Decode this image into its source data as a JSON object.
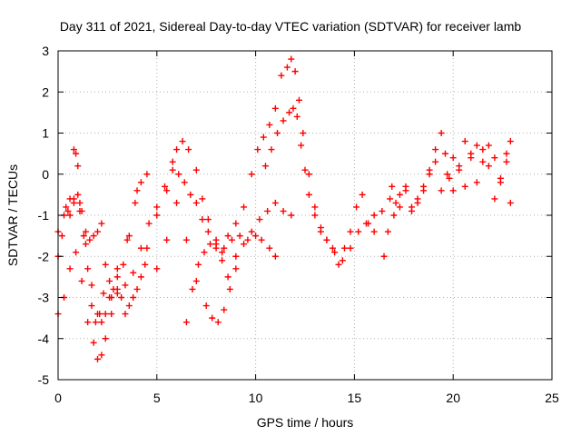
{
  "chart_data": {
    "type": "scatter",
    "title": "Day 311 of 2021, Sidereal Day-to-day VTEC variation (SDTVAR) for receiver lamb",
    "xlabel": "GPS time / hours",
    "ylabel": "SDTVAR / TECUs",
    "xlim": [
      0,
      25
    ],
    "ylim": [
      -5,
      3
    ],
    "xticks": [
      0,
      5,
      10,
      15,
      20,
      25
    ],
    "yticks": [
      -5,
      -4,
      -3,
      -2,
      -1,
      0,
      1,
      2,
      3
    ],
    "grid": true,
    "marker": "+",
    "color": "#ff0000",
    "series": [
      {
        "x": [
          0.0,
          0.3,
          0.6,
          0.8,
          0.9,
          1.0,
          1.1,
          1.3,
          1.5,
          1.7,
          1.9,
          2.1,
          2.3,
          2.6,
          3.0,
          3.5,
          4.0,
          4.5,
          5.0,
          5.5,
          5.8,
          6.0,
          6.3,
          6.6,
          7.0,
          7.3,
          7.6,
          8.0,
          8.3,
          8.6,
          9.0
        ],
        "y": [
          -1.4,
          -1.0,
          -0.6,
          0.6,
          0.5,
          0.2,
          -0.7,
          -1.5,
          -2.3,
          -3.2,
          -3.6,
          -3.4,
          -2.9,
          -2.6,
          -2.3,
          -1.6,
          -0.4,
          0.0,
          -1.0,
          -0.4,
          0.3,
          0.6,
          0.8,
          0.6,
          0.1,
          -0.6,
          -1.1,
          -1.6,
          -1.9,
          -1.5,
          -1.2
        ]
      },
      {
        "x": [
          0.0,
          0.2,
          0.5,
          0.8,
          1.1,
          1.4,
          1.7,
          2.0,
          2.2,
          2.4,
          2.7,
          3.0,
          3.4,
          3.8,
          4.2,
          4.6,
          5.0,
          5.4,
          5.8,
          6.1,
          6.4,
          6.7,
          7.0,
          7.3,
          7.6,
          8.0,
          8.4,
          8.8,
          9.2,
          9.6,
          10.0,
          10.3,
          10.7,
          11.0
        ],
        "y": [
          -2.0,
          -1.5,
          -0.9,
          -0.6,
          -0.9,
          -1.7,
          -2.7,
          -3.4,
          -3.6,
          -3.4,
          -3.0,
          -2.9,
          -2.7,
          -2.4,
          -1.8,
          -1.2,
          -0.8,
          -0.3,
          0.1,
          0.0,
          -0.2,
          -0.5,
          -0.7,
          -1.1,
          -1.4,
          -1.7,
          -1.8,
          -1.6,
          -1.5,
          -1.6,
          -1.5,
          -1.6,
          -1.8,
          -2.0
        ]
      },
      {
        "x": [
          0.0,
          0.3,
          0.6,
          0.9,
          1.2,
          1.5,
          1.8,
          2.0,
          2.2,
          2.4,
          2.7,
          3.0,
          3.3,
          3.6,
          3.9,
          4.2,
          4.5,
          5.0,
          5.5,
          6.0,
          6.5,
          7.0,
          7.5,
          7.8,
          8.1,
          8.4,
          8.7,
          9.0,
          9.4,
          9.8,
          10.2,
          10.6,
          11.0,
          11.4,
          11.8
        ],
        "y": [
          -3.4,
          -3.0,
          -2.3,
          -1.9,
          -2.6,
          -3.6,
          -4.1,
          -4.5,
          -4.4,
          -4.0,
          -3.4,
          -2.8,
          -2.2,
          -1.5,
          -0.7,
          -0.2,
          -1.8,
          -2.3,
          -1.6,
          -0.7,
          -1.6,
          -2.6,
          -3.2,
          -3.5,
          -3.6,
          -3.3,
          -2.8,
          -2.3,
          -1.7,
          -1.4,
          -1.1,
          -0.9,
          -0.7,
          -0.9,
          -1.0
        ]
      },
      {
        "x": [
          6.5,
          6.8,
          7.1,
          7.4,
          7.7,
          8.0,
          8.3,
          8.6,
          9.0,
          9.4,
          9.8,
          10.1,
          10.4,
          10.7,
          11.0,
          11.3,
          11.6,
          11.8,
          12.0,
          12.2,
          12.4,
          12.7,
          13.0,
          13.3,
          13.6,
          14.0,
          14.4,
          14.8,
          15.2,
          15.6,
          16.0,
          16.4
        ],
        "y": [
          -3.6,
          -2.8,
          -2.2,
          -1.9,
          -1.7,
          -1.8,
          -2.1,
          -2.5,
          -2.0,
          -0.8,
          0.0,
          0.6,
          0.9,
          1.2,
          1.6,
          2.4,
          2.6,
          2.8,
          2.5,
          1.8,
          1.0,
          0.0,
          -0.8,
          -1.3,
          -1.6,
          -1.9,
          -2.1,
          -1.8,
          -1.4,
          -1.2,
          -1.0,
          -0.9
        ]
      },
      {
        "x": [
          10.5,
          10.8,
          11.1,
          11.4,
          11.7,
          11.9,
          12.1,
          12.3,
          12.5,
          12.7,
          13.0,
          13.3,
          13.6,
          13.9,
          14.2,
          14.5,
          14.8,
          15.1,
          15.4,
          15.7,
          16.0
        ],
        "y": [
          0.2,
          0.6,
          1.0,
          1.3,
          1.5,
          1.6,
          1.4,
          0.7,
          0.1,
          -0.5,
          -1.0,
          -1.4,
          -1.6,
          -1.8,
          -2.2,
          -1.8,
          -1.4,
          -0.8,
          -0.5,
          -1.2,
          -1.4
        ]
      },
      {
        "x": [
          16.5,
          16.7,
          16.9,
          17.1,
          17.3,
          17.6,
          17.9,
          18.2,
          18.5,
          18.8,
          19.1,
          19.4,
          19.6,
          19.8,
          20.0,
          20.3,
          20.6,
          20.9,
          21.2,
          21.5,
          21.8,
          22.1,
          22.4,
          22.7,
          22.9
        ],
        "y": [
          -2.0,
          -1.4,
          -0.3,
          -0.7,
          -0.5,
          -0.4,
          -0.8,
          -0.6,
          -0.3,
          0.1,
          0.6,
          1.0,
          0.5,
          -0.1,
          -0.4,
          0.2,
          0.8,
          0.5,
          -0.2,
          0.3,
          0.7,
          0.4,
          -0.1,
          0.5,
          0.8
        ]
      },
      {
        "x": [
          16.8,
          17.0,
          17.3,
          17.6,
          17.9,
          18.2,
          18.5,
          18.8,
          19.1,
          19.4,
          19.7,
          20.0,
          20.3,
          20.6,
          20.9,
          21.2,
          21.5,
          21.8,
          22.1,
          22.4,
          22.7,
          22.9
        ],
        "y": [
          -0.6,
          -1.0,
          -0.8,
          -0.3,
          -0.9,
          -0.7,
          -0.4,
          0.0,
          0.3,
          -0.4,
          0.0,
          0.4,
          0.1,
          -0.3,
          0.4,
          0.7,
          0.6,
          0.2,
          -0.6,
          -0.2,
          0.3,
          -0.7
        ]
      },
      {
        "x": [
          0.4,
          0.6,
          0.8,
          1.0,
          1.2,
          1.4,
          1.6,
          1.8,
          2.0,
          2.2,
          2.4,
          2.6,
          2.8,
          3.0,
          3.2,
          3.4,
          3.6,
          3.8,
          4.0,
          4.2,
          4.4
        ],
        "y": [
          -0.8,
          -1.0,
          -0.7,
          -0.5,
          -0.9,
          -1.4,
          -1.6,
          -1.5,
          -1.4,
          -1.2,
          -2.2,
          -3.0,
          -2.8,
          -2.5,
          -3.0,
          -3.4,
          -3.2,
          -3.0,
          -2.8,
          -2.5,
          -2.2
        ]
      }
    ]
  }
}
